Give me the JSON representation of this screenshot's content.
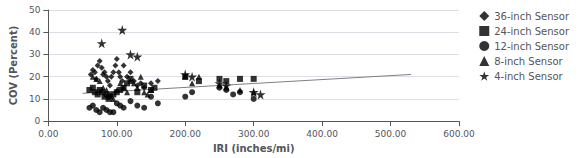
{
  "chart_data": {
    "type": "scatter",
    "xlabel": "IRI (inches/mi)",
    "ylabel": "COV (Percent)",
    "xlim": [
      0,
      600
    ],
    "ylim": [
      0,
      50
    ],
    "xticks": [
      {
        "value": 0,
        "label": "0.00"
      },
      {
        "value": 100,
        "label": "100.00"
      },
      {
        "value": 200,
        "label": "200.00"
      },
      {
        "value": 300,
        "label": "300.00"
      },
      {
        "value": 400,
        "label": "400.00"
      },
      {
        "value": 500,
        "label": "500.00"
      },
      {
        "value": 600,
        "label": "600.00"
      }
    ],
    "yticks": [
      0,
      10,
      20,
      30,
      40,
      50
    ],
    "grid": true,
    "legend": "right",
    "trend_line": {
      "type": "line",
      "color": "gray",
      "x": [
        50,
        530
      ],
      "y": [
        12.5,
        21
      ]
    },
    "series": [
      {
        "name": "36-inch Sensor",
        "marker": "diamond",
        "color": "black",
        "x": [
          62,
          65,
          68,
          70,
          72,
          75,
          78,
          80,
          82,
          85,
          87,
          90,
          92,
          95,
          98,
          100,
          103,
          105,
          108,
          110,
          115,
          120,
          125,
          130,
          135,
          140,
          150,
          160
        ],
        "values": [
          21,
          23,
          22,
          19,
          25,
          27,
          24,
          21,
          22,
          20,
          18,
          16,
          20,
          22,
          25,
          28,
          22,
          20,
          18,
          25,
          20,
          22,
          18,
          16,
          17,
          15,
          17,
          18
        ]
      },
      {
        "name": "24-inch Sensor",
        "marker": "square",
        "color": "black",
        "x": [
          60,
          65,
          68,
          72,
          75,
          78,
          82,
          85,
          88,
          90,
          95,
          100,
          105,
          110,
          115,
          120,
          130,
          140,
          150,
          155,
          200,
          220,
          250,
          260,
          280,
          300
        ],
        "values": [
          14,
          15,
          13,
          12,
          14,
          13,
          11,
          12,
          10,
          11,
          12,
          13,
          14,
          15,
          17,
          19,
          13,
          16,
          14,
          15,
          20,
          18,
          19,
          18,
          19,
          19
        ]
      },
      {
        "name": "12-inch Sensor",
        "marker": "circle",
        "color": "black",
        "x": [
          60,
          65,
          70,
          75,
          80,
          85,
          90,
          95,
          100,
          105,
          110,
          120,
          130,
          140,
          150,
          160,
          200,
          210,
          250,
          260,
          270,
          280,
          300
        ],
        "values": [
          6,
          7,
          5,
          4,
          6,
          5,
          4,
          4,
          8,
          7,
          6,
          9,
          7,
          6,
          11,
          8,
          11,
          13,
          15,
          14,
          12,
          13,
          10
        ]
      },
      {
        "name": "8-inch Sensor",
        "marker": "triangle",
        "color": "black",
        "x": [
          65,
          70,
          75,
          80,
          85,
          90,
          95,
          100,
          105,
          110,
          115,
          120,
          125,
          130,
          135,
          140,
          145,
          150,
          200,
          210,
          220,
          250,
          260,
          280,
          300
        ],
        "values": [
          20,
          19,
          18,
          15,
          14,
          12,
          10,
          14,
          17,
          15,
          13,
          18,
          17,
          15,
          20,
          13,
          12,
          14,
          20,
          17,
          20,
          16,
          15,
          14,
          13
        ]
      },
      {
        "name": "4-inch Sensor",
        "marker": "star",
        "color": "black",
        "x": [
          78,
          108,
          120,
          130,
          200,
          210,
          250,
          260,
          300,
          310
        ],
        "values": [
          35,
          41,
          30,
          29,
          21,
          20,
          17,
          16,
          13,
          12
        ]
      }
    ]
  }
}
